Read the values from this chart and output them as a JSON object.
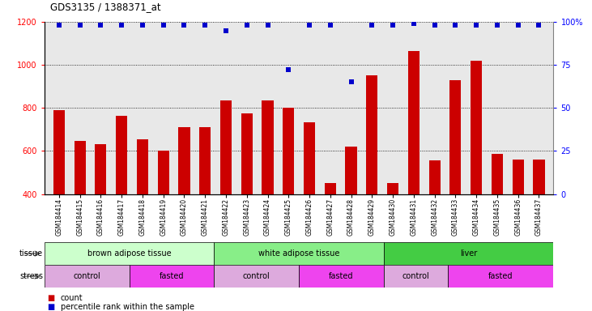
{
  "title": "GDS3135 / 1388371_at",
  "samples": [
    "GSM184414",
    "GSM184415",
    "GSM184416",
    "GSM184417",
    "GSM184418",
    "GSM184419",
    "GSM184420",
    "GSM184421",
    "GSM184422",
    "GSM184423",
    "GSM184424",
    "GSM184425",
    "GSM184426",
    "GSM184427",
    "GSM184428",
    "GSM184429",
    "GSM184430",
    "GSM184431",
    "GSM184432",
    "GSM184433",
    "GSM184434",
    "GSM184435",
    "GSM184436",
    "GSM184437"
  ],
  "counts": [
    790,
    648,
    632,
    764,
    655,
    603,
    710,
    710,
    835,
    775,
    835,
    800,
    735,
    450,
    621,
    950,
    450,
    1065,
    555,
    930,
    1020,
    585,
    562,
    562
  ],
  "percentile_ranks": [
    98,
    98,
    98,
    98,
    98,
    98,
    98,
    98,
    95,
    98,
    98,
    72,
    98,
    98,
    65,
    98,
    98,
    99,
    98,
    98,
    98,
    98,
    98,
    98
  ],
  "ylim_left": [
    400,
    1200
  ],
  "ylim_right": [
    0,
    100
  ],
  "yticks_left": [
    400,
    600,
    800,
    1000,
    1200
  ],
  "yticks_right": [
    0,
    25,
    50,
    75,
    100
  ],
  "bar_color": "#cc0000",
  "dot_color": "#0000cc",
  "tissue_groups": [
    {
      "label": "brown adipose tissue",
      "start": 0,
      "end": 8,
      "color": "#ccffcc"
    },
    {
      "label": "white adipose tissue",
      "start": 8,
      "end": 16,
      "color": "#88ee88"
    },
    {
      "label": "liver",
      "start": 16,
      "end": 24,
      "color": "#44cc44"
    }
  ],
  "stress_groups": [
    {
      "label": "control",
      "start": 0,
      "end": 4,
      "color": "#ddaadd"
    },
    {
      "label": "fasted",
      "start": 4,
      "end": 8,
      "color": "#ee44ee"
    },
    {
      "label": "control",
      "start": 8,
      "end": 12,
      "color": "#ddaadd"
    },
    {
      "label": "fasted",
      "start": 12,
      "end": 16,
      "color": "#ee44ee"
    },
    {
      "label": "control",
      "start": 16,
      "end": 19,
      "color": "#ddaadd"
    },
    {
      "label": "fasted",
      "start": 19,
      "end": 24,
      "color": "#ee44ee"
    }
  ],
  "tissue_row_label": "tissue",
  "stress_row_label": "stress",
  "legend_count_label": "count",
  "legend_pct_label": "percentile rank within the sample"
}
